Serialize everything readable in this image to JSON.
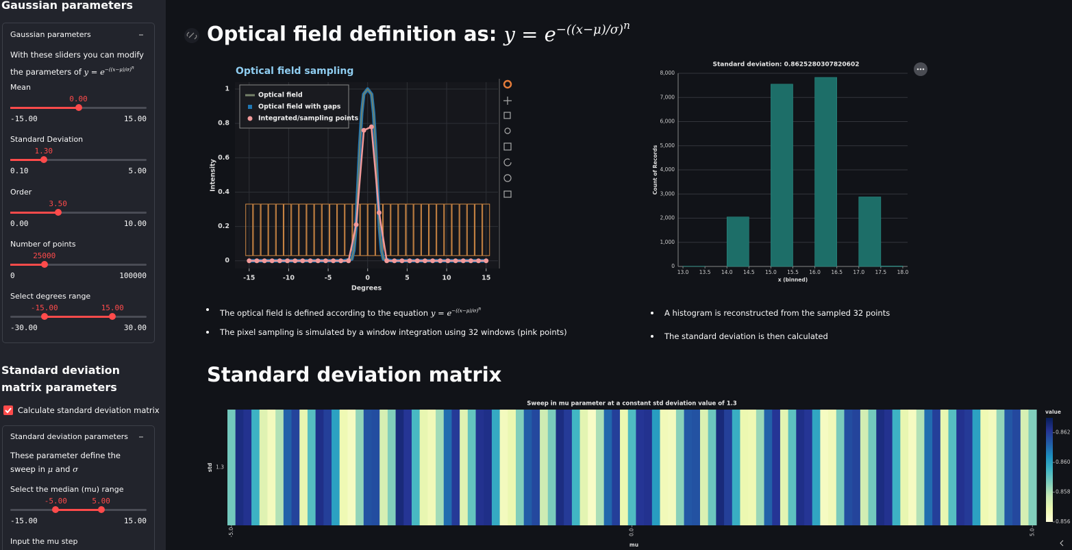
{
  "formula": {
    "base": "y = e",
    "exponent": "−((x−μ)/σ)",
    "power": "n"
  },
  "sidebar": {
    "title": "Gaussian parameters",
    "expander1": {
      "title": "Gaussian parameters",
      "text": "With these sliders you can modify the parameters of",
      "sliders": [
        {
          "label": "Mean",
          "values": [
            {
              "value": 0,
              "label": "0.00"
            }
          ],
          "min": {
            "value": -15,
            "label": "-15.00"
          },
          "max": {
            "value": 15,
            "label": "15.00"
          }
        },
        {
          "label": "Standard Deviation",
          "values": [
            {
              "value": 1.3,
              "label": "1.30"
            }
          ],
          "min": {
            "value": 0.1,
            "label": "0.10"
          },
          "max": {
            "value": 5,
            "label": "5.00"
          }
        },
        {
          "label": "Order",
          "values": [
            {
              "value": 3.5,
              "label": "3.50"
            }
          ],
          "min": {
            "value": 0,
            "label": "0.00"
          },
          "max": {
            "value": 10,
            "label": "10.00"
          }
        },
        {
          "label": "Number of points",
          "values": [
            25000
          ],
          "min": 0,
          "max": 100000
        },
        {
          "label": "Select degrees range",
          "values": [
            {
              "value": -15,
              "label": "-15.00"
            },
            {
              "value": 15,
              "label": "15.00"
            }
          ],
          "min": {
            "value": -30,
            "label": "-30.00"
          },
          "max": {
            "value": 30,
            "label": "30.00"
          }
        }
      ]
    },
    "title2": "Standard deviation matrix parameters",
    "checkbox": "Calculate standard deviation matrix",
    "expander2": {
      "title": "Standard deviation parameters",
      "text": "These parameter define the sweep in",
      "mu": "μ",
      "and": "and",
      "sigma": "σ",
      "sliders": [
        {
          "label": "Select the median (mu) range",
          "values": [
            {
              "value": -5,
              "label": "-5.00"
            },
            {
              "value": 5,
              "label": "5.00"
            }
          ],
          "min": {
            "value": -15,
            "label": "-15.00"
          },
          "max": {
            "value": 15,
            "label": "15.00"
          }
        }
      ],
      "input_label": "Input the mu step"
    }
  },
  "main": {
    "heading": "Optical field definition as:",
    "bullets_left": [
      "The optical field is defined according to the equation",
      "The pixel sampling is simulated by a window integration using 32 windows (pink points)"
    ],
    "bullets_right": [
      "A histogram is reconstructed from the sampled 32 points",
      "The standard deviation is then calculated"
    ],
    "heading2": "Standard deviation matrix"
  },
  "chart_data": [
    {
      "type": "line",
      "title": "Optical field sampling",
      "xlabel": "Degrees",
      "ylabel": "Intensity",
      "xlim": [
        -16.8,
        16.5
      ],
      "ylim": [
        -0.045,
        1.04
      ],
      "xticks": [
        -15,
        -10,
        -5,
        0,
        5,
        10,
        15
      ],
      "yticks": [
        0,
        0.2,
        0.4,
        0.6,
        0.8,
        1
      ],
      "grid": true,
      "legend": "top-left",
      "window_color": "#d28a45",
      "window_bounds": [
        0.03,
        0.33
      ],
      "series": [
        {
          "name": "Optical field",
          "color": "#75826a",
          "x": [
            -15,
            -3,
            -2,
            -1.75,
            -1.5,
            -1.25,
            -1,
            -0.75,
            -0.5,
            0,
            0.5,
            0.75,
            1,
            1.25,
            1.5,
            1.75,
            2,
            3,
            15
          ],
          "values": [
            0,
            0,
            0.01,
            0.06,
            0.19,
            0.42,
            0.67,
            0.86,
            0.97,
            1,
            0.97,
            0.86,
            0.67,
            0.42,
            0.19,
            0.06,
            0.01,
            0,
            0
          ]
        },
        {
          "name": "Optical field with gaps",
          "color": "#1f77b4",
          "x": [
            -15,
            -3,
            -2,
            -1.75,
            -1.5,
            -1.25,
            -1,
            -0.75,
            -0.5,
            0,
            0.5,
            0.75,
            1,
            1.25,
            1.5,
            1.75,
            2,
            3,
            15
          ],
          "values": [
            0,
            0,
            0.01,
            0.06,
            0.19,
            0.42,
            0.67,
            0.86,
            0.97,
            1,
            0.97,
            0.86,
            0.67,
            0.42,
            0.19,
            0.06,
            0.01,
            0,
            0
          ]
        },
        {
          "name": "Integrated/sampling points",
          "color": "#f29a9a",
          "x": [
            -15,
            -14.03,
            -13.06,
            -12.1,
            -11.13,
            -10.16,
            -9.19,
            -8.23,
            -7.26,
            -6.29,
            -5.32,
            -4.35,
            -3.39,
            -2.42,
            -1.45,
            -0.48,
            0.48,
            1.45,
            2.42,
            3.39,
            4.35,
            5.32,
            6.29,
            7.26,
            8.23,
            9.19,
            10.16,
            11.13,
            12.1,
            13.06,
            14.03,
            15
          ],
          "values": [
            0,
            0,
            0,
            0,
            0,
            0,
            0,
            0,
            0,
            0,
            0,
            0,
            0,
            0,
            0.21,
            0.76,
            0.78,
            0.28,
            0,
            0,
            0,
            0,
            0,
            0,
            0,
            0,
            0,
            0,
            0,
            0,
            0,
            0
          ]
        }
      ]
    },
    {
      "type": "histogram",
      "title": "Standard deviation: 0.8625280307820602",
      "xlabel": "x (binned)",
      "ylabel": "Count of Records",
      "color": "#1d6e68",
      "bins": [
        13,
        13.5,
        14,
        14.5,
        15,
        15.5,
        16,
        16.5,
        17,
        17.5,
        18
      ],
      "values": [
        10,
        0,
        2050,
        0,
        7550,
        0,
        7830,
        0,
        2880,
        20
      ],
      "xlim": [
        12.89,
        18.11
      ],
      "ylim": [
        0,
        8000
      ],
      "xticks": [
        {
          "value": 13,
          "label": "13.0"
        },
        13.5,
        {
          "value": 14,
          "label": "14.0"
        },
        14.5,
        {
          "value": 15,
          "label": "15.0"
        },
        15.5,
        {
          "value": 16,
          "label": "16.0"
        },
        16.5,
        {
          "value": 17,
          "label": "17.0"
        },
        17.5,
        {
          "value": 18,
          "label": "18.0"
        }
      ],
      "yticks": [
        0,
        {
          "value": 1000,
          "label": "1,000"
        },
        {
          "value": 2000,
          "label": "2,000"
        },
        {
          "value": 3000,
          "label": "3,000"
        },
        {
          "value": 4000,
          "label": "4,000"
        },
        {
          "value": 5000,
          "label": "5,000"
        },
        {
          "value": 6000,
          "label": "6,000"
        },
        {
          "value": 7000,
          "label": "7,000"
        },
        {
          "value": 8000,
          "label": "8,000"
        }
      ],
      "grid": true
    },
    {
      "type": "heatmap",
      "title": "Sweep in mu parameter at a constant std deviation value of 1.3",
      "xlabel": "mu",
      "ylabel": "std",
      "colorbar_title": "value",
      "y": [
        "1.3"
      ],
      "xlim": [
        -5.05,
        5.1
      ],
      "xticks": [
        {
          "value": -5,
          "label": "-5.0"
        },
        {
          "value": 0,
          "label": "0.0"
        },
        {
          "value": 5,
          "label": "5.0"
        }
      ],
      "colorbar_range": [
        0.856,
        0.863
      ],
      "colorbar_ticks": [
        0.862,
        {
          "value": 0.86,
          "label": "0.860"
        },
        0.858,
        0.856
      ],
      "colorscale": [
        "#ffffd9",
        "#edf8b1",
        "#c7e9b4",
        "#7fcdbb",
        "#41b6c4",
        "#1d91c0",
        "#225ea8",
        "#253494",
        "#081d58"
      ],
      "x": [
        -5,
        -4.9,
        -4.8,
        -4.7,
        -4.6,
        -4.5,
        -4.4,
        -4.3,
        -4.2,
        -4.1,
        -4,
        -3.9,
        -3.8,
        -3.7,
        -3.6,
        -3.5,
        -3.4,
        -3.3,
        -3.2,
        -3.1,
        -3,
        -2.9,
        -2.8,
        -2.7,
        -2.6,
        -2.5,
        -2.4,
        -2.3,
        -2.2,
        -2.1,
        -2,
        -1.9,
        -1.8,
        -1.7,
        -1.6,
        -1.5,
        -1.4,
        -1.3,
        -1.2,
        -1.1,
        -1,
        -0.9,
        -0.8,
        -0.7,
        -0.6,
        -0.5,
        -0.4,
        -0.3,
        -0.2,
        -0.1,
        0,
        0.1,
        0.2,
        0.3,
        0.4,
        0.5,
        0.6,
        0.7,
        0.8,
        0.9,
        1,
        1.1,
        1.2,
        1.3,
        1.4,
        1.5,
        1.6,
        1.7,
        1.8,
        1.9,
        2,
        2.1,
        2.2,
        2.3,
        2.4,
        2.5,
        2.6,
        2.7,
        2.8,
        2.9,
        3,
        3.1,
        3.2,
        3.3,
        3.4,
        3.5,
        3.6,
        3.7,
        3.8,
        3.9,
        4,
        4.1,
        4.2,
        4.3,
        4.4,
        4.5,
        4.6,
        4.7,
        4.8,
        4.9,
        5
      ],
      "values": [
        [
          0.8588,
          0.8624,
          0.8622,
          0.8596,
          0.8572,
          0.8566,
          0.858,
          0.8612,
          0.8618,
          0.857,
          0.8592,
          0.8623,
          0.8619,
          0.86,
          0.8568,
          0.8565,
          0.8584,
          0.8615,
          0.8616,
          0.8574,
          0.8586,
          0.8625,
          0.8621,
          0.8594,
          0.857,
          0.8567,
          0.8582,
          0.861,
          0.862,
          0.8572,
          0.859,
          0.8622,
          0.8623,
          0.8598,
          0.8566,
          0.8569,
          0.8586,
          0.8613,
          0.8617,
          0.8576,
          0.8587,
          0.8624,
          0.862,
          0.8595,
          0.8571,
          0.8564,
          0.8581,
          0.8611,
          0.8619,
          0.8569,
          0.8593,
          0.8621,
          0.8622,
          0.8601,
          0.8567,
          0.8566,
          0.8585,
          0.8614,
          0.8615,
          0.8573,
          0.8589,
          0.8625,
          0.8619,
          0.8597,
          0.8569,
          0.8568,
          0.8583,
          0.8612,
          0.8621,
          0.8571,
          0.8591,
          0.8623,
          0.8621,
          0.8599,
          0.8565,
          0.8567,
          0.8587,
          0.8616,
          0.8618,
          0.8575,
          0.8588,
          0.8624,
          0.8622,
          0.8596,
          0.857,
          0.8565,
          0.858,
          0.861,
          0.8619,
          0.857,
          0.8592,
          0.8622,
          0.862,
          0.86,
          0.8568,
          0.8566,
          0.8584,
          0.8614,
          0.8617,
          0.8574,
          0.8586
        ]
      ]
    }
  ]
}
